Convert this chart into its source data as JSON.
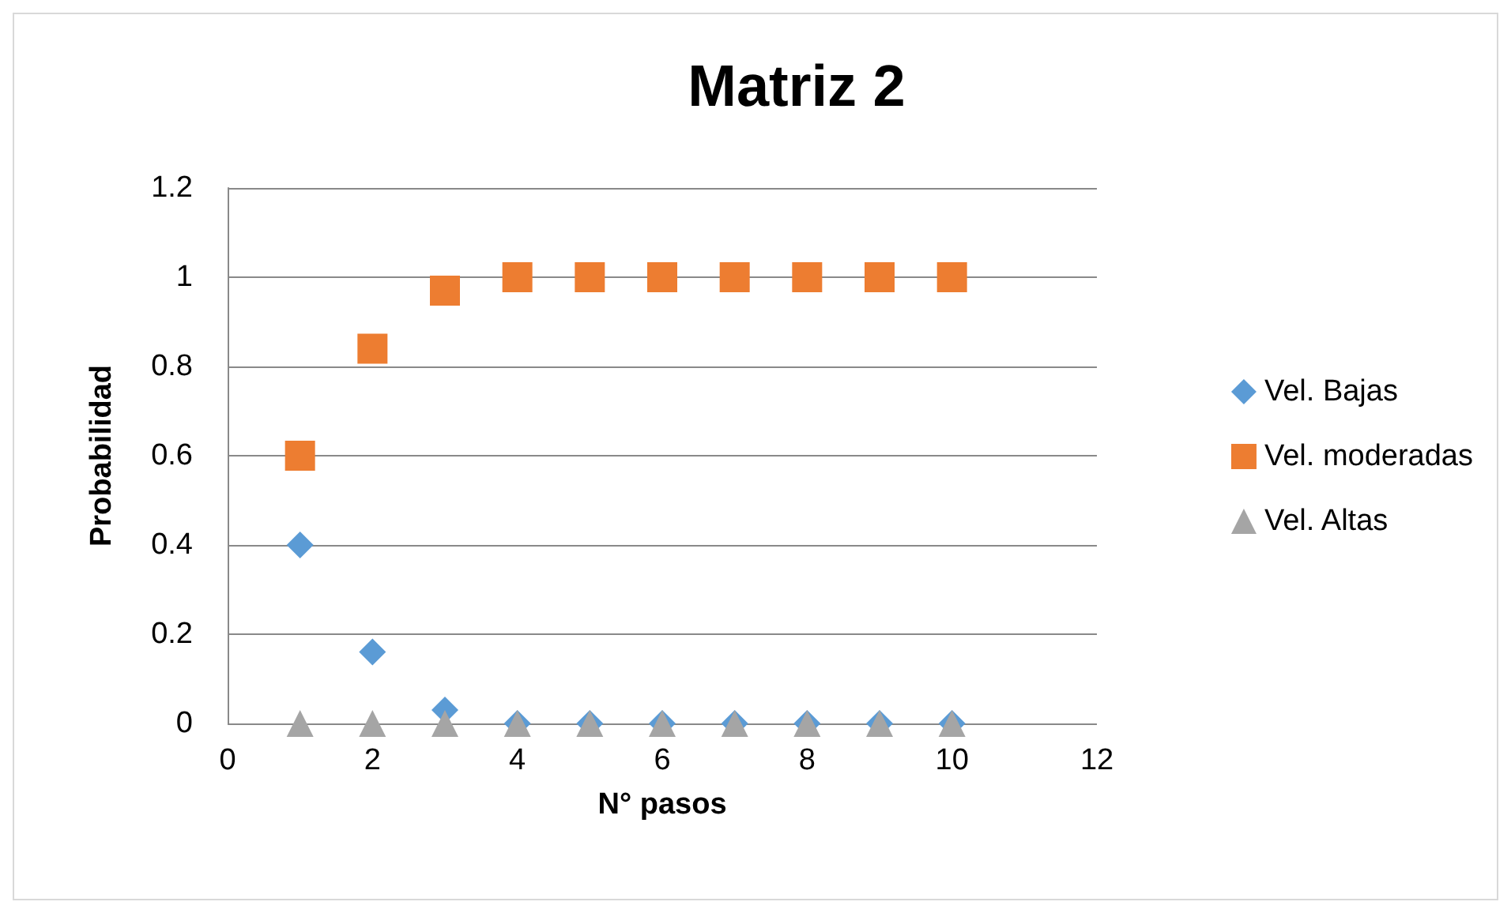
{
  "chart_data": {
    "type": "scatter",
    "title": "Matriz 2",
    "xlabel": "N° pasos",
    "ylabel": "Probabilidad",
    "x": [
      1,
      2,
      3,
      4,
      5,
      6,
      7,
      8,
      9,
      10
    ],
    "series": [
      {
        "name": "Vel. Bajas",
        "color": "#5b9bd5",
        "marker": "diamond",
        "values": [
          0.4,
          0.16,
          0.03,
          0,
          0,
          0,
          0,
          0,
          0,
          0
        ]
      },
      {
        "name": "Vel. moderadas",
        "color": "#ed7d31",
        "marker": "square",
        "values": [
          0.6,
          0.84,
          0.97,
          1,
          1,
          1,
          1,
          1,
          1,
          1
        ]
      },
      {
        "name": "Vel. Altas",
        "color": "#a5a5a5",
        "marker": "triangle",
        "values": [
          0,
          0,
          0,
          0,
          0,
          0,
          0,
          0,
          0,
          0
        ]
      }
    ],
    "xlim": [
      0,
      12
    ],
    "xticks": [
      0,
      2,
      4,
      6,
      8,
      10,
      12
    ],
    "ylim": [
      0,
      1.2
    ],
    "yticks": [
      0,
      0.2,
      0.4,
      0.6,
      0.8,
      1,
      1.2
    ],
    "grid": "y",
    "legend": "right"
  }
}
